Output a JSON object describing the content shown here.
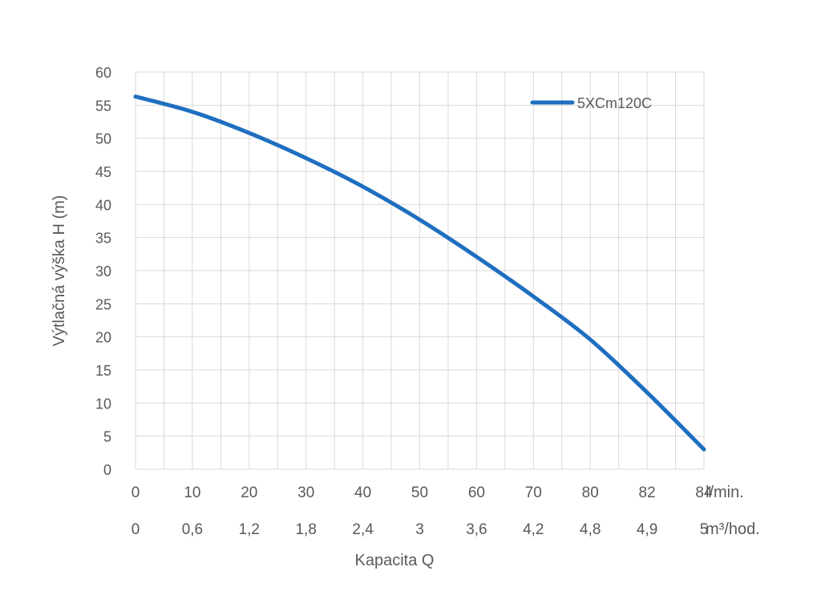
{
  "chart_data": {
    "type": "line",
    "title": "",
    "ylabel": "Výtlačná výška H (m)",
    "xlabel": "Kapacita Q",
    "ylim": [
      0,
      60
    ],
    "yticks": [
      "0",
      "5",
      "10",
      "15",
      "20",
      "25",
      "30",
      "35",
      "40",
      "45",
      "50",
      "55",
      "60"
    ],
    "x_lpm": [
      "0",
      "10",
      "20",
      "30",
      "40",
      "50",
      "60",
      "70",
      "80",
      "82",
      "84"
    ],
    "x_lpm_unit": "l/min.",
    "x_m3h": [
      "0",
      "0,6",
      "1,2",
      "1,8",
      "2,4",
      "3",
      "3,6",
      "4,2",
      "4,8",
      "4,9",
      "5"
    ],
    "x_m3h_unit": "m³/hod.",
    "grid": true,
    "legend_position": "top-right",
    "series": [
      {
        "name": "5XCm120C",
        "color": "#1f6fc0",
        "values": [
          56.3,
          54,
          50.8,
          47,
          42.7,
          37.7,
          32.1,
          26.1,
          19.6,
          11.6,
          3.0
        ]
      }
    ]
  }
}
